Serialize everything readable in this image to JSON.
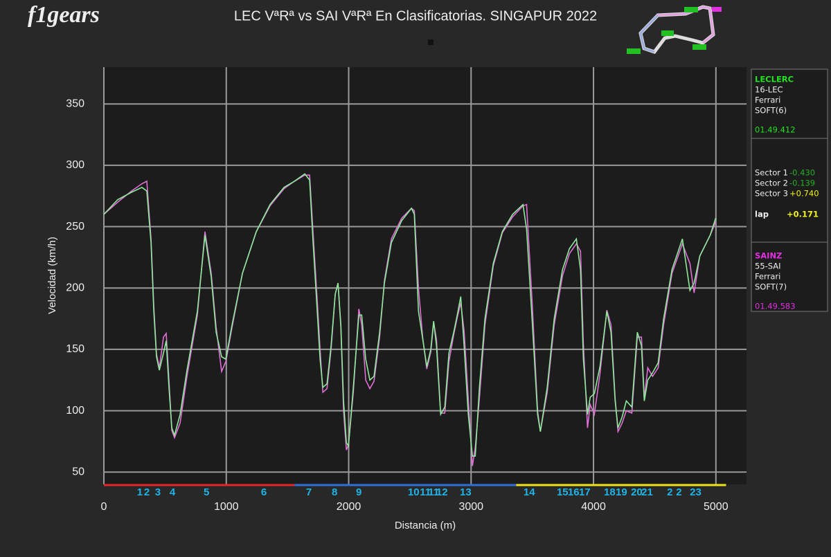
{
  "chart_data": {
    "type": "line",
    "title": "LEC VªRª vs SAI VªRª En Clasificatorias. SINGAPUR 2022",
    "logo": "f1gears",
    "xlabel": "Distancia (m)",
    "ylabel": "Velocidad (km/h)",
    "xlim": [
      0,
      5250
    ],
    "ylim": [
      40,
      380
    ],
    "xticks": [
      0,
      1000,
      2000,
      3000,
      4000,
      5000
    ],
    "yticks": [
      50,
      100,
      150,
      200,
      250,
      300,
      350
    ],
    "grid": true,
    "x": [
      0,
      113,
      226,
      311,
      351,
      385,
      408,
      430,
      453,
      487,
      509,
      532,
      555,
      577,
      623,
      679,
      764,
      826,
      877,
      917,
      962,
      996,
      1047,
      1132,
      1245,
      1358,
      1472,
      1557,
      1641,
      1681,
      1709,
      1743,
      1766,
      1789,
      1823,
      1856,
      1890,
      1913,
      1936,
      1958,
      1981,
      1998,
      2038,
      2083,
      2106,
      2139,
      2173,
      2207,
      2253,
      2292,
      2349,
      2434,
      2513,
      2536,
      2570,
      2604,
      2638,
      2671,
      2694,
      2717,
      2751,
      2785,
      2819,
      2858,
      2887,
      2915,
      2943,
      2977,
      3011,
      3034,
      3068,
      3113,
      3181,
      3255,
      3339,
      3424,
      3453,
      3498,
      3543,
      3566,
      3622,
      3679,
      3747,
      3803,
      3860,
      3894,
      3917,
      3951,
      3973,
      4007,
      4053,
      4109,
      4143,
      4177,
      4200,
      4234,
      4268,
      4313,
      4358,
      4392,
      4415,
      4443,
      4483,
      4528,
      4573,
      4641,
      4726,
      4788,
      4822,
      4868,
      4953,
      4998
    ],
    "series": [
      {
        "name": "SAINZ",
        "color": "#e070d8",
        "values": [
          260,
          270,
          279,
          285,
          287,
          240,
          185,
          146,
          135,
          160,
          163,
          125,
          84,
          78,
          90,
          128,
          178,
          246,
          212,
          168,
          132,
          140,
          168,
          212,
          246,
          267,
          281,
          287,
          292,
          292,
          245,
          190,
          150,
          115,
          118,
          150,
          195,
          204,
          168,
          100,
          68,
          72,
          115,
          183,
          170,
          125,
          118,
          124,
          160,
          206,
          240,
          257,
          265,
          263,
          200,
          160,
          134,
          148,
          172,
          158,
          98,
          98,
          140,
          162,
          176,
          188,
          165,
          110,
          55,
          70,
          110,
          170,
          218,
          245,
          258,
          267,
          268,
          190,
          100,
          83,
          115,
          170,
          210,
          228,
          236,
          230,
          155,
          86,
          105,
          97,
          130,
          182,
          170,
          110,
          83,
          90,
          100,
          98,
          160,
          160,
          110,
          135,
          128,
          135,
          170,
          212,
          236,
          220,
          196,
          226,
          243,
          254
        ]
      },
      {
        "name": "LECLERC",
        "color": "#8ee89a",
        "values": [
          260,
          272,
          278,
          282,
          279,
          237,
          181,
          144,
          133,
          147,
          157,
          119,
          86,
          80,
          97,
          133,
          181,
          243,
          209,
          164,
          144,
          142,
          170,
          212,
          246,
          268,
          282,
          287,
          293,
          288,
          237,
          181,
          142,
          119,
          122,
          153,
          195,
          204,
          170,
          108,
          74,
          71,
          119,
          178,
          178,
          142,
          125,
          128,
          164,
          204,
          237,
          255,
          265,
          260,
          181,
          159,
          136,
          150,
          173,
          153,
          97,
          103,
          147,
          164,
          178,
          193,
          153,
          97,
          63,
          63,
          119,
          175,
          220,
          246,
          260,
          268,
          248,
          175,
          97,
          83,
          119,
          175,
          215,
          232,
          240,
          215,
          142,
          97,
          111,
          114,
          136,
          181,
          164,
          108,
          86,
          95,
          108,
          103,
          164,
          153,
          108,
          125,
          131,
          139,
          175,
          215,
          240,
          198,
          204,
          226,
          243,
          257
        ]
      }
    ],
    "turns": [
      {
        "label": "1",
        "x": 294
      },
      {
        "label": "2",
        "x": 351
      },
      {
        "label": "3",
        "x": 441
      },
      {
        "label": "4",
        "x": 560
      },
      {
        "label": "5",
        "x": 838
      },
      {
        "label": "6",
        "x": 1307
      },
      {
        "label": "7",
        "x": 1675
      },
      {
        "label": "8",
        "x": 1885
      },
      {
        "label": "9",
        "x": 2083
      },
      {
        "label": "10",
        "x": 2530
      },
      {
        "label": "11",
        "x": 2626
      },
      {
        "label": "11",
        "x": 2694
      },
      {
        "label": "12",
        "x": 2762
      },
      {
        "label": "13",
        "x": 2955
      },
      {
        "label": "14",
        "x": 3475
      },
      {
        "label": "15",
        "x": 3747
      },
      {
        "label": "16",
        "x": 3837
      },
      {
        "label": "17",
        "x": 3928
      },
      {
        "label": "18",
        "x": 4132
      },
      {
        "label": "19",
        "x": 4228
      },
      {
        "label": "20",
        "x": 4353
      },
      {
        "label": "21",
        "x": 4438
      },
      {
        "label": "2",
        "x": 4624
      },
      {
        "label": "2",
        "x": 4698
      },
      {
        "label": "23",
        "x": 4834
      }
    ],
    "turn_color": "#1fb4e8",
    "sectors": [
      {
        "color": "#e8242a",
        "start": 0,
        "end": 1557
      },
      {
        "color": "#2f6fd8",
        "start": 1557,
        "end": 3368
      },
      {
        "color": "#f2e21a",
        "start": 3368,
        "end": 5083
      }
    ],
    "legend": {
      "driver1": {
        "name": "LECLERC",
        "number": "16-LEC",
        "team": "Ferrari",
        "tyre": "SOFT(6)",
        "lap_time": "01.49.412"
      },
      "sectors": [
        {
          "label": "Sector 1",
          "delta": "-0.430",
          "color": "#22b022"
        },
        {
          "label": "Sector 2",
          "delta": "-0.139",
          "color": "#22b022"
        },
        {
          "label": "Sector 3",
          "delta": "+0.740",
          "color": "#f2f21a"
        }
      ],
      "lap": {
        "label": "lap",
        "delta": "+0.171",
        "color": "#f2f21a"
      },
      "driver2": {
        "name": "SAINZ",
        "number": "55-SAI",
        "team": "Ferrari",
        "tyre": "SOFT(7)",
        "lap_time": "01.49.583"
      }
    }
  }
}
